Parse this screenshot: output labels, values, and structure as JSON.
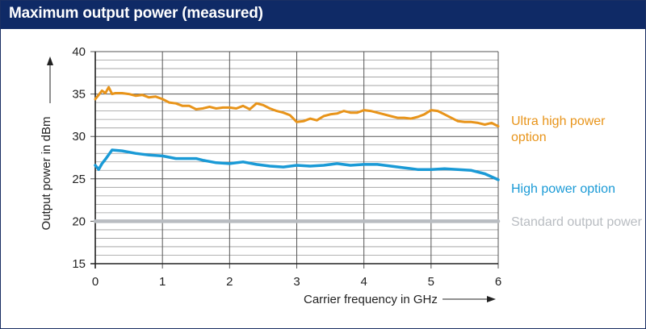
{
  "title": "Maximum output power (measured)",
  "chart_data": {
    "type": "line",
    "title": "Maximum output power (measured)",
    "xlabel": "Carrier frequency in GHz",
    "ylabel": "Output power in dBm",
    "xlim": [
      0,
      6
    ],
    "ylim": [
      15,
      40
    ],
    "x_ticks": [
      0,
      1,
      2,
      3,
      4,
      5,
      6
    ],
    "y_ticks": [
      15,
      20,
      25,
      30,
      35,
      40
    ],
    "grid": true,
    "series": [
      {
        "name": "Ultra high power option",
        "color": "#e8941a",
        "x": [
          0,
          0.05,
          0.1,
          0.15,
          0.2,
          0.25,
          0.3,
          0.4,
          0.5,
          0.6,
          0.7,
          0.8,
          0.9,
          1.0,
          1.1,
          1.2,
          1.3,
          1.4,
          1.5,
          1.6,
          1.7,
          1.8,
          1.9,
          2.0,
          2.1,
          2.2,
          2.3,
          2.4,
          2.5,
          2.6,
          2.7,
          2.8,
          2.9,
          3.0,
          3.1,
          3.2,
          3.3,
          3.4,
          3.5,
          3.6,
          3.7,
          3.8,
          3.9,
          4.0,
          4.1,
          4.2,
          4.3,
          4.4,
          4.5,
          4.6,
          4.7,
          4.8,
          4.9,
          5.0,
          5.1,
          5.2,
          5.3,
          5.4,
          5.5,
          5.6,
          5.7,
          5.8,
          5.9,
          6.0
        ],
        "values": [
          34.4,
          34.9,
          35.4,
          35.1,
          35.8,
          35.0,
          35.1,
          35.1,
          35.0,
          34.8,
          34.9,
          34.6,
          34.7,
          34.4,
          34.0,
          33.9,
          33.6,
          33.6,
          33.2,
          33.3,
          33.5,
          33.3,
          33.4,
          33.4,
          33.3,
          33.6,
          33.2,
          33.9,
          33.7,
          33.3,
          33.0,
          32.8,
          32.5,
          31.7,
          31.8,
          32.1,
          31.9,
          32.4,
          32.6,
          32.7,
          33.0,
          32.8,
          32.8,
          33.1,
          33.0,
          32.8,
          32.6,
          32.4,
          32.2,
          32.2,
          32.1,
          32.3,
          32.6,
          33.1,
          33.0,
          32.6,
          32.2,
          31.8,
          31.7,
          31.7,
          31.6,
          31.4,
          31.6,
          31.2
        ]
      },
      {
        "name": "High power option",
        "color": "#1a9ad6",
        "x": [
          0,
          0.05,
          0.1,
          0.15,
          0.25,
          0.4,
          0.6,
          0.8,
          1.0,
          1.2,
          1.4,
          1.5,
          1.6,
          1.8,
          2.0,
          2.2,
          2.4,
          2.6,
          2.8,
          3.0,
          3.2,
          3.4,
          3.6,
          3.8,
          4.0,
          4.2,
          4.4,
          4.6,
          4.8,
          5.0,
          5.2,
          5.4,
          5.6,
          5.8,
          6.0
        ],
        "values": [
          26.6,
          26.1,
          26.8,
          27.3,
          28.4,
          28.3,
          28.0,
          27.8,
          27.7,
          27.4,
          27.4,
          27.4,
          27.2,
          26.9,
          26.8,
          27.0,
          26.7,
          26.5,
          26.4,
          26.6,
          26.5,
          26.6,
          26.8,
          26.6,
          26.7,
          26.7,
          26.5,
          26.3,
          26.1,
          26.1,
          26.2,
          26.1,
          26.0,
          25.6,
          24.9
        ]
      },
      {
        "name": "Standard output power",
        "color": "#b8bcc1",
        "x": [
          0,
          6
        ],
        "values": [
          20,
          20
        ]
      }
    ]
  }
}
